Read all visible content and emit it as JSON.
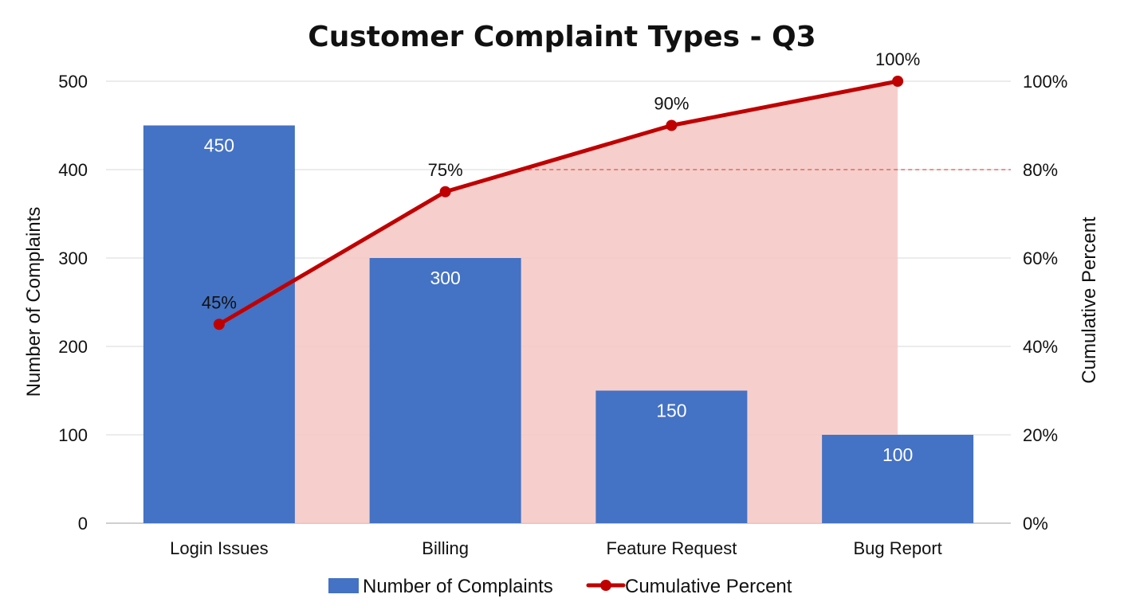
{
  "chart_data": {
    "type": "bar",
    "title": "Customer Complaint Types - Q3",
    "categories": [
      "Login Issues",
      "Billing",
      "Feature Request",
      "Bug Report"
    ],
    "series": [
      {
        "name": "Number of Complaints",
        "kind": "bar",
        "axis": "left",
        "color": "#4472c4",
        "values": [
          450,
          300,
          150,
          100
        ],
        "data_labels": [
          "450",
          "300",
          "150",
          "100"
        ]
      },
      {
        "name": "Cumulative Percent",
        "kind": "line",
        "axis": "right",
        "color": "#c00000",
        "values": [
          45,
          75,
          90,
          100
        ],
        "data_labels": [
          "45%",
          "75%",
          "90%",
          "100%"
        ]
      }
    ],
    "ylabel": "Number of Complaints",
    "ylim": [
      0,
      500
    ],
    "yticks": [
      "0",
      "100",
      "200",
      "300",
      "400",
      "500"
    ],
    "y2label": "Cumulative Percent",
    "y2lim": [
      0,
      100
    ],
    "y2ticks": [
      "0%",
      "20%",
      "40%",
      "60%",
      "80%",
      "100%"
    ],
    "reference_line": {
      "axis": "right",
      "value": 80,
      "style": "dashed",
      "color": "#d9534f"
    },
    "shaded_area_color": "#f4c7c3",
    "grid": true,
    "gridline_color": "#d9d9d9",
    "legend_position": "bottom"
  }
}
